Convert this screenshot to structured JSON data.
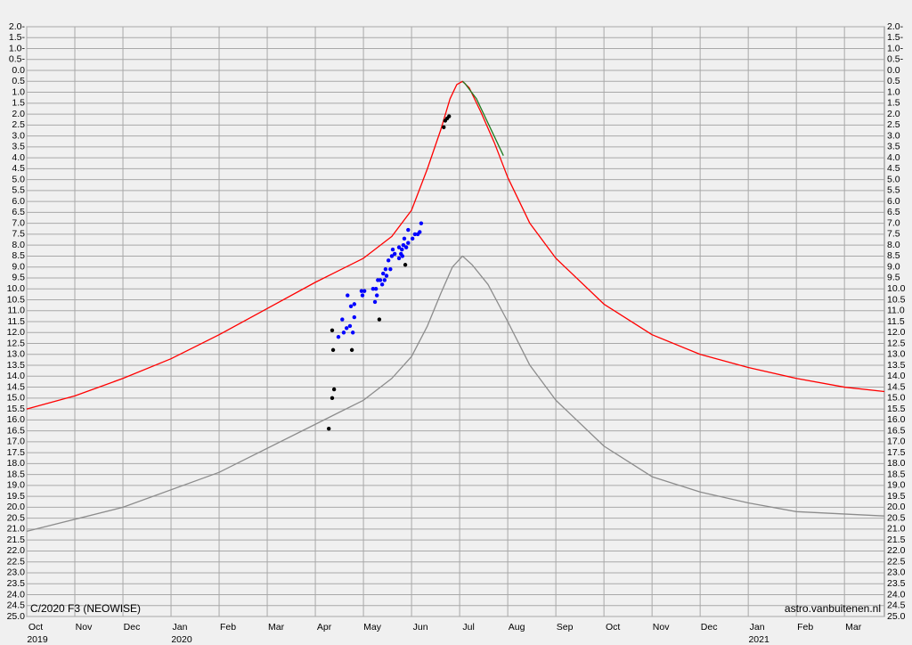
{
  "chart_data": {
    "type": "line",
    "y_inverted": true,
    "grid": true,
    "ylim": [
      -2,
      25
    ],
    "yticks": [
      {
        "value": -2,
        "label": "2.0-"
      },
      {
        "value": -1.5,
        "label": "1.5-"
      },
      {
        "value": -1,
        "label": "1.0-"
      },
      {
        "value": -0.5,
        "label": "0.5-"
      },
      {
        "value": 0,
        "label": "0.0"
      },
      0.5,
      {
        "value": 1,
        "label": "1.0"
      },
      1.5,
      {
        "value": 2,
        "label": "2.0"
      },
      2.5,
      {
        "value": 3,
        "label": "3.0"
      },
      3.5,
      {
        "value": 4,
        "label": "4.0"
      },
      4.5,
      {
        "value": 5,
        "label": "5.0"
      },
      5.5,
      {
        "value": 6,
        "label": "6.0"
      },
      6.5,
      {
        "value": 7,
        "label": "7.0"
      },
      7.5,
      {
        "value": 8,
        "label": "8.0"
      },
      8.5,
      {
        "value": 9,
        "label": "9.0"
      },
      9.5,
      {
        "value": 10,
        "label": "10.0"
      },
      10.5,
      {
        "value": 11,
        "label": "11.0"
      },
      11.5,
      {
        "value": 12,
        "label": "12.0"
      },
      12.5,
      {
        "value": 13,
        "label": "13.0"
      },
      13.5,
      {
        "value": 14,
        "label": "14.0"
      },
      14.5,
      {
        "value": 15,
        "label": "15.0"
      },
      15.5,
      {
        "value": 16,
        "label": "16.0"
      },
      16.5,
      {
        "value": 17,
        "label": "17.0"
      },
      17.5,
      {
        "value": 18,
        "label": "18.0"
      },
      18.5,
      {
        "value": 19,
        "label": "19.0"
      },
      19.5,
      {
        "value": 20,
        "label": "20.0"
      },
      20.5,
      {
        "value": 21,
        "label": "21.0"
      },
      21.5,
      {
        "value": 22,
        "label": "22.0"
      },
      22.5,
      {
        "value": 23,
        "label": "23.0"
      },
      23.5,
      {
        "value": 24,
        "label": "24.0"
      },
      24.5,
      {
        "value": 25,
        "label": "25.0"
      }
    ],
    "xlim": [
      0,
      17.83
    ],
    "xticks": [
      {
        "value": 0,
        "label": "Oct"
      },
      {
        "value": 1,
        "label": "Nov"
      },
      {
        "value": 2,
        "label": "Dec"
      },
      {
        "value": 3,
        "label": "Jan"
      },
      {
        "value": 4,
        "label": "Feb"
      },
      {
        "value": 5,
        "label": "Mar"
      },
      {
        "value": 6,
        "label": "Apr"
      },
      {
        "value": 7,
        "label": "May"
      },
      {
        "value": 8,
        "label": "Jun"
      },
      {
        "value": 9,
        "label": "Jul"
      },
      {
        "value": 10,
        "label": "Aug"
      },
      {
        "value": 11,
        "label": "Sep"
      },
      {
        "value": 12,
        "label": "Oct"
      },
      {
        "value": 13,
        "label": "Nov"
      },
      {
        "value": 14,
        "label": "Dec"
      },
      {
        "value": 15,
        "label": "Jan"
      },
      {
        "value": 16,
        "label": "Feb"
      },
      {
        "value": 17,
        "label": "Mar"
      }
    ],
    "year_labels": [
      {
        "value": 0,
        "label": "2019"
      },
      {
        "value": 3,
        "label": "2020"
      },
      {
        "value": 15,
        "label": "2021"
      }
    ],
    "annotations": [
      "C/2020 F3 (NEOWISE)",
      "astro.vanbuitenen.nl"
    ],
    "series": [
      {
        "mode": "line",
        "color": "#ff0000",
        "x": [
          0,
          1,
          2,
          3,
          4,
          5,
          6,
          7,
          7.59,
          8,
          8.33,
          8.61,
          8.8,
          8.94,
          9.06,
          9.2,
          9.44,
          9.72,
          10,
          10.46,
          11,
          12,
          13,
          14,
          15,
          16,
          17,
          17.83
        ],
        "values": [
          15.5,
          14.9,
          14.1,
          13.2,
          12.1,
          10.9,
          9.7,
          8.6,
          7.6,
          6.4,
          4.5,
          2.7,
          1.3,
          0.65,
          0.5,
          0.8,
          1.9,
          3.3,
          4.9,
          7.0,
          8.6,
          10.7,
          12.1,
          13.0,
          13.6,
          14.1,
          14.5,
          14.7
        ]
      },
      {
        "mode": "line",
        "color": "#8c8c8c",
        "x": [
          0,
          2,
          4,
          6,
          7,
          7.59,
          8,
          8.33,
          8.61,
          8.85,
          9.06,
          9.26,
          9.59,
          10,
          10.46,
          11,
          12,
          13,
          14,
          15,
          16,
          17.83
        ],
        "values": [
          21.1,
          20.0,
          18.4,
          16.2,
          15.1,
          14.1,
          13.1,
          11.7,
          10.2,
          9.0,
          8.5,
          8.9,
          9.8,
          11.5,
          13.5,
          15.1,
          17.2,
          18.6,
          19.3,
          19.8,
          20.2,
          20.4
        ]
      },
      {
        "mode": "line",
        "color": "#1f7a1f",
        "x": [
          9.06,
          9.11,
          9.35,
          9.63,
          9.91
        ],
        "values": [
          0.5,
          0.6,
          1.3,
          2.6,
          3.9
        ]
      },
      {
        "mode": "markers",
        "color": "#000000",
        "x": [
          6.28,
          6.35,
          6.39,
          6.37,
          6.35,
          6.76,
          7.33,
          7.87,
          8.67,
          8.7,
          8.74,
          8.78
        ],
        "values": [
          16.4,
          15.0,
          14.6,
          12.8,
          11.9,
          12.8,
          11.4,
          8.9,
          2.6,
          2.3,
          2.2,
          2.1
        ]
      },
      {
        "mode": "markers",
        "color": "#0000ff",
        "x": [
          6.48,
          6.56,
          6.59,
          6.65,
          6.67,
          6.72,
          6.74,
          6.78,
          6.81,
          6.81,
          6.96,
          6.98,
          7.02,
          7.2,
          7.24,
          7.26,
          7.28,
          7.3,
          7.35,
          7.39,
          7.41,
          7.44,
          7.46,
          7.48,
          7.52,
          7.56,
          7.59,
          7.61,
          7.65,
          7.74,
          7.74,
          7.78,
          7.8,
          7.81,
          7.83,
          7.85,
          7.89,
          7.93,
          7.93,
          8.02,
          8.07,
          8.13,
          8.17,
          8.2
        ],
        "values": [
          12.2,
          11.4,
          12.0,
          11.8,
          10.3,
          11.7,
          10.8,
          12.0,
          10.7,
          11.3,
          10.1,
          10.3,
          10.1,
          10.0,
          10.6,
          10.0,
          10.3,
          9.6,
          9.6,
          9.8,
          9.3,
          9.6,
          9.1,
          9.4,
          8.7,
          9.1,
          8.5,
          8.2,
          8.4,
          8.6,
          8.1,
          8.4,
          8.2,
          8.5,
          8.0,
          7.7,
          8.1,
          7.3,
          7.9,
          7.7,
          7.5,
          7.5,
          7.4,
          7.0
        ]
      }
    ]
  }
}
